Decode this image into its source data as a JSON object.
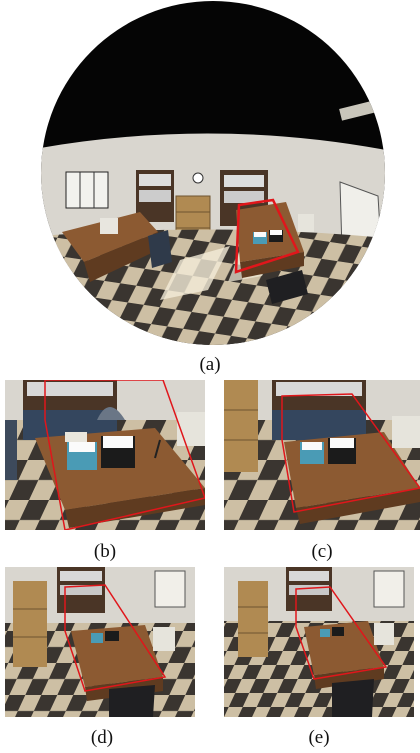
{
  "figure": {
    "captions": {
      "a": "(a)",
      "b": "(b)",
      "c": "(c)",
      "d": "(d)",
      "e": "(e)"
    },
    "colors": {
      "highlight": "#e0161b",
      "ceiling": "#050505",
      "wall": "#d9d6cf",
      "floor_dark": "#3a3530",
      "floor_light": "#cdbfa4",
      "desk": "#8c5a32",
      "cabinet": "#b08a52",
      "shelf": "#4a3526"
    }
  }
}
